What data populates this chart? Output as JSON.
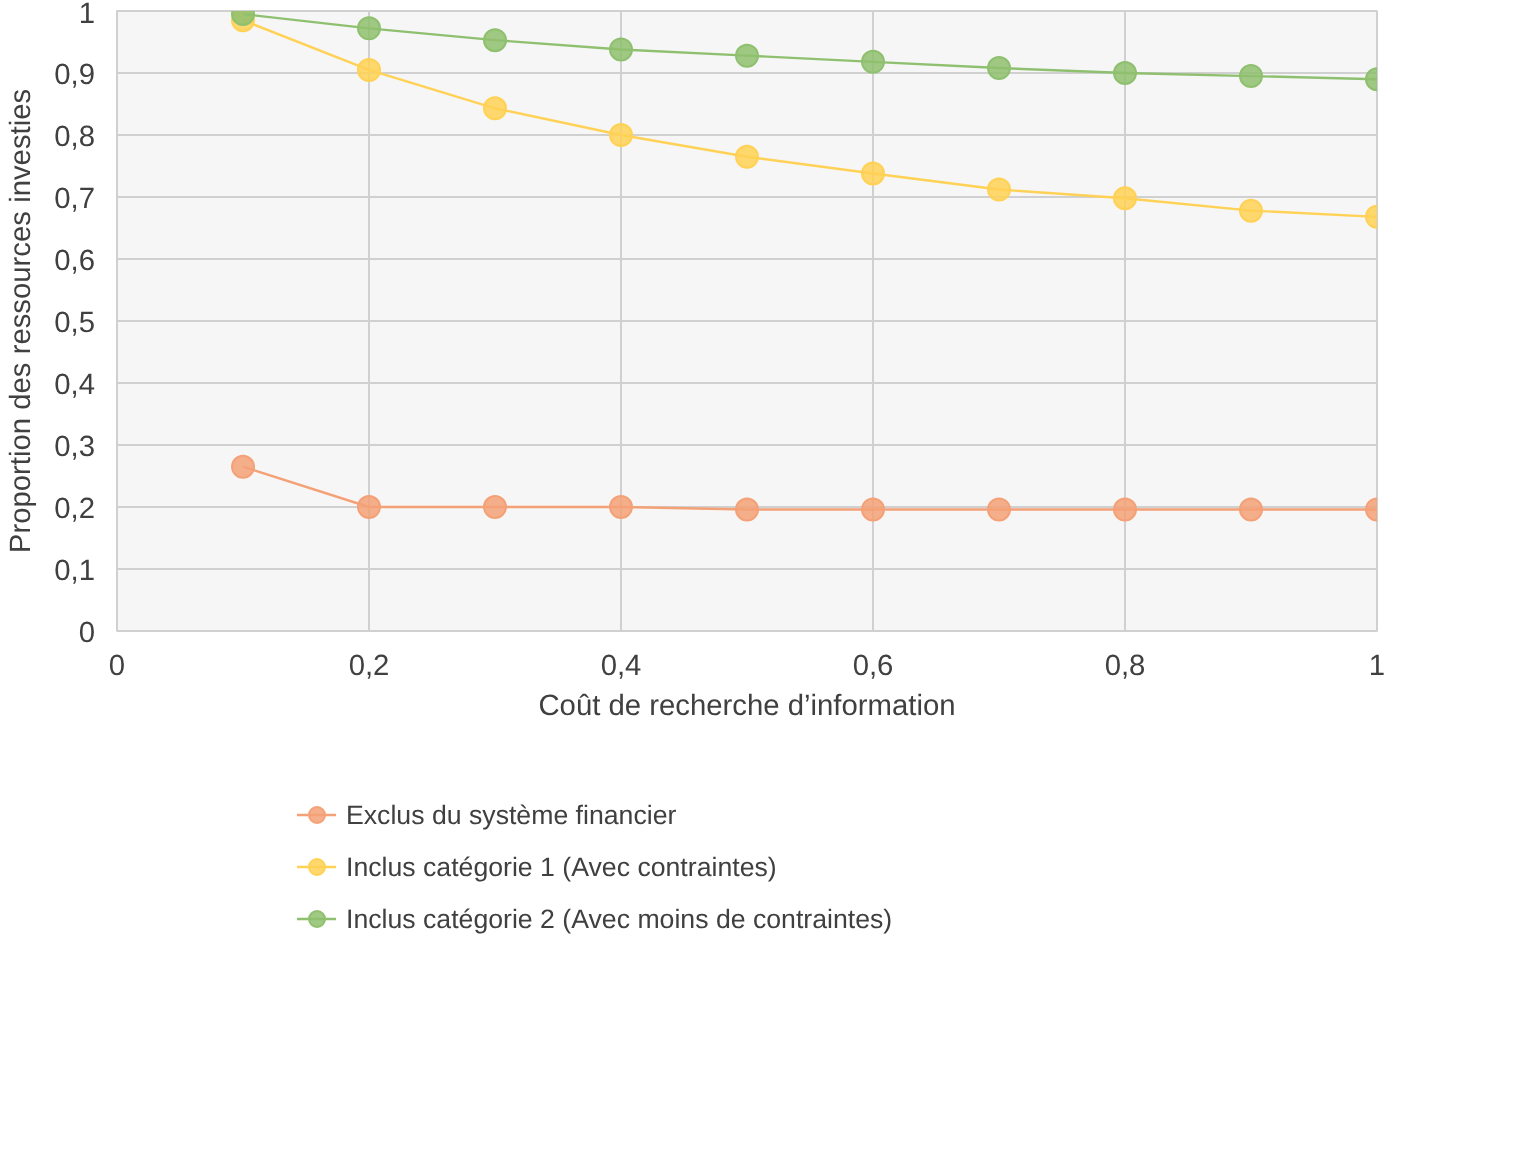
{
  "chart_data": {
    "type": "line",
    "xlabel": "Coût de recherche d’information",
    "ylabel": "Proportion des ressources investies",
    "x": [
      0.1,
      0.2,
      0.3,
      0.4,
      0.5,
      0.6,
      0.7,
      0.8,
      0.9,
      1.0
    ],
    "series": [
      {
        "name": "Exclus du système financier",
        "color": "#f4a177",
        "values": [
          0.265,
          0.2,
          0.2,
          0.2,
          0.196,
          0.196,
          0.196,
          0.196,
          0.196,
          0.196
        ]
      },
      {
        "name": "Inclus catégorie 1 (Avec contraintes)",
        "color": "#ffd155",
        "values": [
          0.985,
          0.905,
          0.843,
          0.8,
          0.765,
          0.738,
          0.712,
          0.698,
          0.678,
          0.668
        ]
      },
      {
        "name": "Inclus catégorie 2 (Avec moins de contraintes)",
        "color": "#8fc06f",
        "values": [
          0.995,
          0.972,
          0.953,
          0.938,
          0.928,
          0.918,
          0.908,
          0.9,
          0.895,
          0.89
        ]
      }
    ],
    "xlim": [
      0,
      1
    ],
    "ylim": [
      0,
      1
    ],
    "xticks": [
      0,
      {
        "value": 0.2,
        "label": "0,2"
      },
      {
        "value": 0.4,
        "label": "0,4"
      },
      {
        "value": 0.6,
        "label": "0,6"
      },
      {
        "value": 0.8,
        "label": "0,8"
      },
      1
    ],
    "yticks": [
      0,
      {
        "value": 0.1,
        "label": "0,1"
      },
      {
        "value": 0.2,
        "label": "0,2"
      },
      {
        "value": 0.3,
        "label": "0,3"
      },
      {
        "value": 0.4,
        "label": "0,4"
      },
      {
        "value": 0.5,
        "label": "0,5"
      },
      {
        "value": 0.6,
        "label": "0,6"
      },
      {
        "value": 0.7,
        "label": "0,7"
      },
      {
        "value": 0.8,
        "label": "0,8"
      },
      {
        "value": 0.9,
        "label": "0,9"
      },
      1
    ],
    "grid": true,
    "legend": "bottom",
    "marker": "circle"
  }
}
